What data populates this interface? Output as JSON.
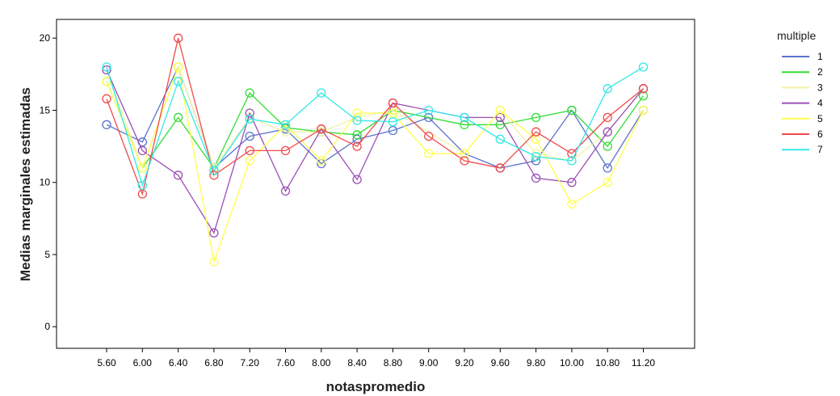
{
  "chart_data": {
    "type": "line",
    "xlabel": "notaspromedio",
    "ylabel": "Medias marginales estimadas",
    "ylim": [
      -1.5,
      21.3
    ],
    "yticks": [
      "0",
      "5",
      "10",
      "15",
      "20"
    ],
    "categories": [
      "5.60",
      "6.00",
      "6.40",
      "6.80",
      "7.20",
      "7.60",
      "8.00",
      "8.40",
      "8.80",
      "9.00",
      "9.20",
      "9.60",
      "9.80",
      "10.00",
      "10.80",
      "11.20"
    ],
    "legend_title": "multiple",
    "legend_position": "right",
    "grid": false,
    "series": [
      {
        "name": "1",
        "color": "#5b74c9",
        "values": [
          14.0,
          12.8,
          18.0,
          11.0,
          13.2,
          13.7,
          11.3,
          13.0,
          13.6,
          14.5,
          12.0,
          11.0,
          11.5,
          15.0,
          11.0,
          15.0
        ]
      },
      {
        "name": "2",
        "color": "#33dd33",
        "values": [
          17.0,
          11.0,
          14.5,
          11.0,
          16.2,
          13.8,
          13.5,
          13.3,
          15.0,
          null,
          14.0,
          14.0,
          14.5,
          15.0,
          12.5,
          16.0
        ]
      },
      {
        "name": "3",
        "color": "#f2f2a6",
        "values": [
          17.8,
          11.0,
          18.0,
          11.0,
          14.5,
          13.5,
          13.5,
          14.5,
          15.0,
          null,
          12.0,
          15.0,
          12.0,
          11.5,
          13.5,
          16.5
        ]
      },
      {
        "name": "4",
        "color": "#9b4fb5",
        "values": [
          17.8,
          12.2,
          10.5,
          6.5,
          14.8,
          9.4,
          13.7,
          10.2,
          15.5,
          null,
          14.5,
          14.5,
          10.3,
          10.0,
          13.5,
          16.5
        ]
      },
      {
        "name": "5",
        "color": "#ffff4d",
        "values": [
          17.0,
          11.0,
          18.0,
          4.5,
          11.5,
          14.0,
          11.5,
          14.8,
          14.8,
          12.0,
          12.0,
          15.0,
          13.0,
          8.5,
          10.0,
          15.0
        ]
      },
      {
        "name": "6",
        "color": "#f04a4a",
        "values": [
          15.8,
          9.2,
          20.0,
          10.5,
          12.2,
          12.2,
          13.7,
          12.5,
          15.5,
          13.2,
          11.5,
          11.0,
          13.5,
          12.0,
          14.5,
          16.5
        ]
      },
      {
        "name": "7",
        "color": "#33e8e8",
        "values": [
          18.0,
          9.8,
          17.0,
          10.8,
          14.4,
          14.0,
          16.2,
          14.3,
          14.2,
          15.0,
          14.5,
          13.0,
          11.8,
          11.5,
          16.5,
          18.0
        ]
      }
    ]
  }
}
